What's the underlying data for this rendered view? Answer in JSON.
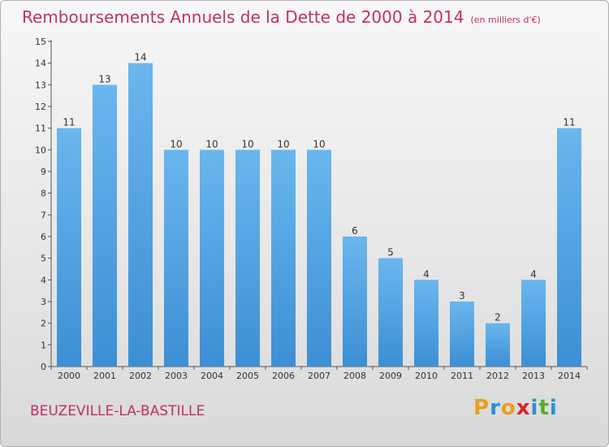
{
  "header": {
    "title": "Remboursements Annuels de la Dette de 2000 à 2014",
    "subtitle": "(en milliers d'€)"
  },
  "footer": {
    "place": "BEUZEVILLE-LA-BASTILLE",
    "logo_letters": [
      "P",
      "r",
      "o",
      "x",
      "i",
      "t",
      "i"
    ],
    "logo_colors": [
      "#e8a020",
      "#2b8fd6",
      "#e8a020",
      "#d8262e",
      "#2b8fd6",
      "#5aab2a",
      "#2b8fd6"
    ]
  },
  "chart_data": {
    "type": "bar",
    "title": "Remboursements Annuels de la Dette de 2000 à 2014",
    "subtitle": "(en milliers d'€)",
    "categories": [
      "2000",
      "2001",
      "2002",
      "2003",
      "2004",
      "2005",
      "2006",
      "2007",
      "2008",
      "2009",
      "2010",
      "2011",
      "2012",
      "2013",
      "2014"
    ],
    "values": [
      11,
      13,
      14,
      10,
      10,
      10,
      10,
      10,
      6,
      5,
      4,
      3,
      2,
      4,
      11
    ],
    "ylim": [
      0,
      15
    ],
    "yticks": [
      "0",
      "1",
      "2",
      "3",
      "4",
      "5",
      "6",
      "7",
      "8",
      "9",
      "10",
      "11",
      "12",
      "13",
      "14",
      "15"
    ],
    "xlabel": "",
    "ylabel": "",
    "grid": false,
    "bar_color": "#3d8fd4",
    "bar_color_light": "#6ab6ee"
  }
}
